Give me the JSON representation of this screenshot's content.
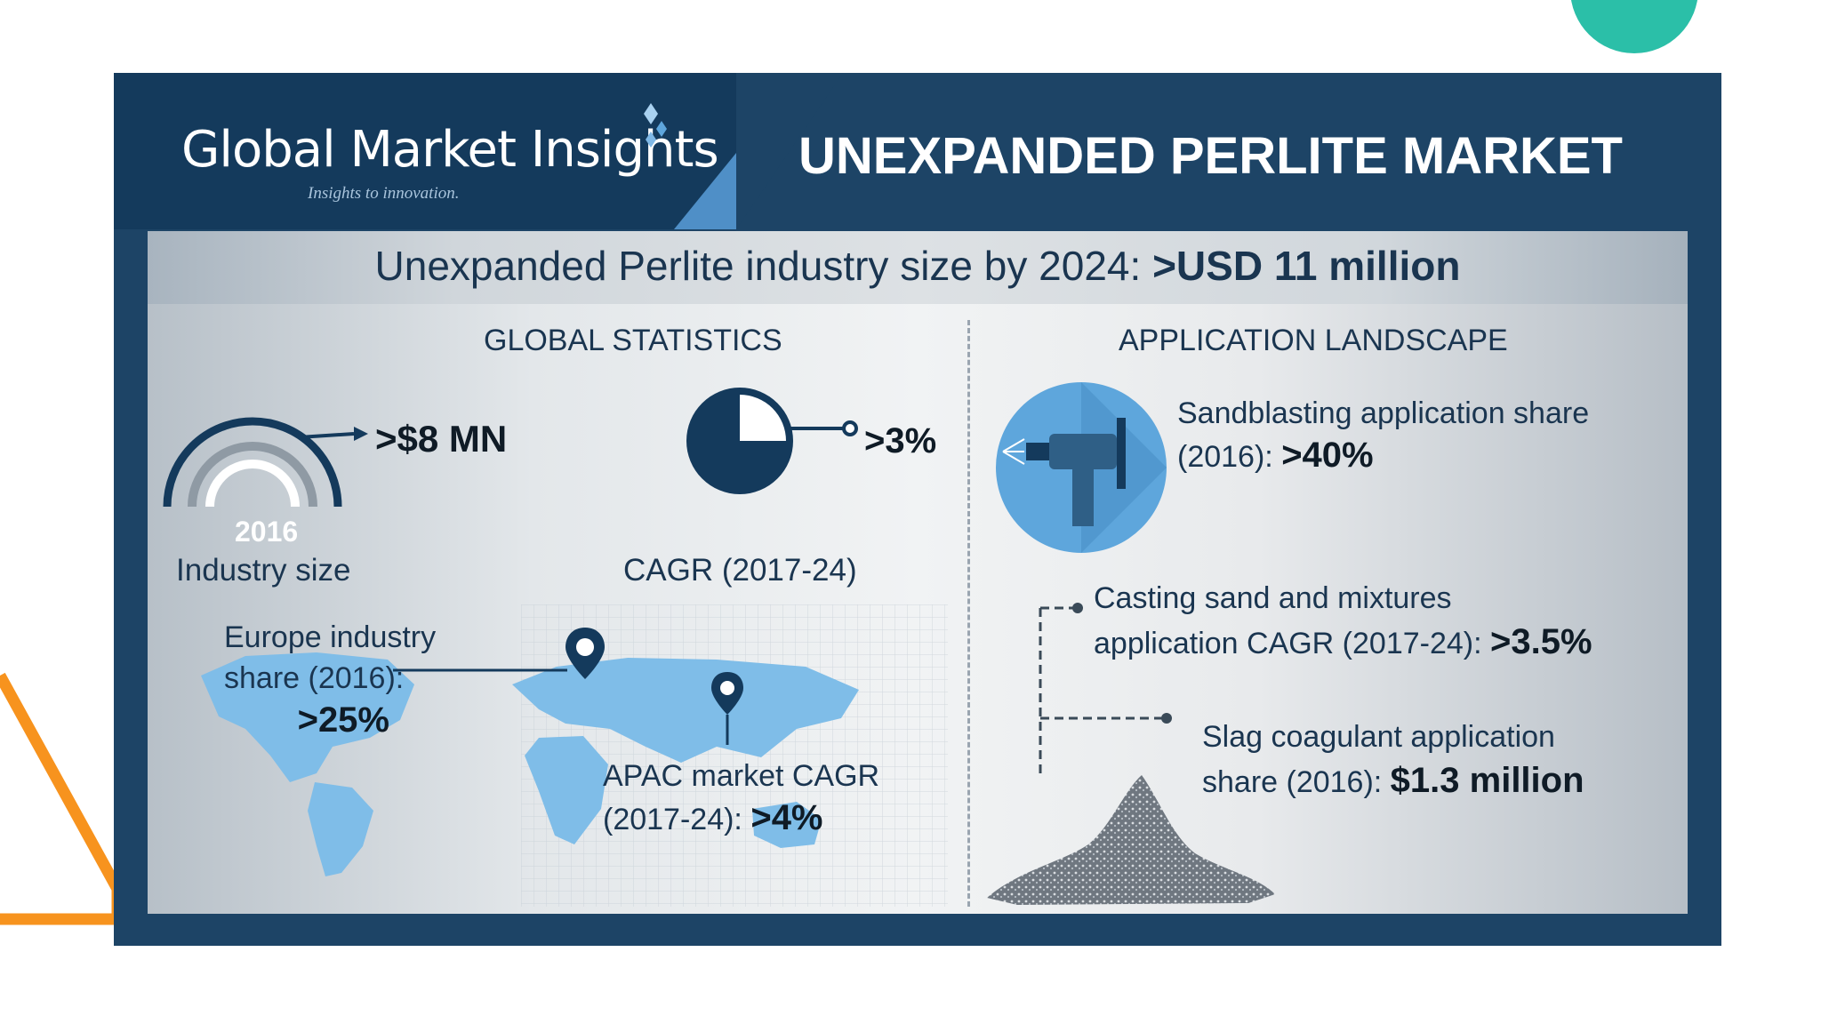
{
  "header": {
    "logo_name": "Global Market Insights",
    "logo_tagline": "Insights to innovation.",
    "title": "UNEXPANDED PERLITE MARKET"
  },
  "banner": {
    "text": "Unexpanded Perlite industry size by 2024: ",
    "value": ">USD 11 million"
  },
  "global_statistics": {
    "title": "GLOBAL STATISTICS",
    "industry_size": {
      "year": "2016",
      "value": ">$8 MN",
      "label": "Industry size"
    },
    "cagr": {
      "value": ">3%",
      "label": "CAGR (2017-24)"
    },
    "europe": {
      "line1": "Europe industry",
      "line2": "share (2016):",
      "value": ">25%"
    },
    "apac": {
      "line1": "APAC market CAGR",
      "line2": "(2017-24): ",
      "value": ">4%"
    }
  },
  "application_landscape": {
    "title": "APPLICATION LANDSCAPE",
    "sandblasting": {
      "line1": "Sandblasting application share",
      "line2": "(2016): ",
      "value": ">40%"
    },
    "casting": {
      "line1": "Casting sand and mixtures",
      "line2": "application CAGR (2017-24): ",
      "value": ">3.5%"
    },
    "slag": {
      "line1": "Slag coagulant application",
      "line2": "share (2016): ",
      "value": "$1.3 million"
    }
  },
  "colors": {
    "header_dark": "#143a5c",
    "header_main": "#1d4466",
    "accent_light_blue": "#5ea6dc",
    "teal_circle": "#2bbfa8",
    "orange_line": "#f7931e"
  },
  "icons": [
    "logo-diamond-icon",
    "gauge-icon",
    "pie-clock-icon",
    "location-pin-icon",
    "sandblaster-icon",
    "perlite-pile-icon"
  ]
}
